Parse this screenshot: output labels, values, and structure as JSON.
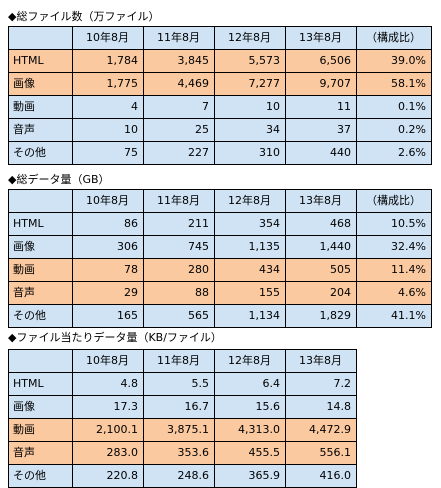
{
  "colors": {
    "blue": "#cfe3f5",
    "orange": "#fbc9a0"
  },
  "tables": [
    {
      "title": "◆総ファイル数（万ファイル）",
      "headers": [
        "",
        "10年8月",
        "11年8月",
        "12年8月",
        "13年8月",
        "（構成比）"
      ],
      "rows": [
        {
          "label": "HTML",
          "values": [
            "1,784",
            "3,845",
            "5,573",
            "6,506"
          ],
          "share": "39.0%",
          "color": "orange"
        },
        {
          "label": "画像",
          "values": [
            "1,775",
            "4,469",
            "7,277",
            "9,707"
          ],
          "share": "58.1%",
          "color": "orange"
        },
        {
          "label": "動画",
          "values": [
            "4",
            "7",
            "10",
            "11"
          ],
          "share": "0.1%",
          "color": "blue"
        },
        {
          "label": "音声",
          "values": [
            "10",
            "25",
            "34",
            "37"
          ],
          "share": "0.2%",
          "color": "blue"
        },
        {
          "label": "その他",
          "values": [
            "75",
            "227",
            "310",
            "440"
          ],
          "share": "2.6%",
          "color": "blue"
        }
      ]
    },
    {
      "title": "◆総データ量（GB）",
      "headers": [
        "",
        "10年8月",
        "11年8月",
        "12年8月",
        "13年8月",
        "（構成比）"
      ],
      "rows": [
        {
          "label": "HTML",
          "values": [
            "86",
            "211",
            "354",
            "468"
          ],
          "share": "10.5%",
          "color": "blue"
        },
        {
          "label": "画像",
          "values": [
            "306",
            "745",
            "1,135",
            "1,440"
          ],
          "share": "32.4%",
          "color": "blue"
        },
        {
          "label": "動画",
          "values": [
            "78",
            "280",
            "434",
            "505"
          ],
          "share": "11.4%",
          "color": "orange"
        },
        {
          "label": "音声",
          "values": [
            "29",
            "88",
            "155",
            "204"
          ],
          "share": "4.6%",
          "color": "orange"
        },
        {
          "label": "その他",
          "values": [
            "165",
            "565",
            "1,134",
            "1,829"
          ],
          "share": "41.1%",
          "color": "blue"
        }
      ]
    },
    {
      "title": "◆ファイル当たりデータ量（KB/ファイル）",
      "headers": [
        "",
        "10年8月",
        "11年8月",
        "12年8月",
        "13年8月"
      ],
      "rows": [
        {
          "label": "HTML",
          "values": [
            "4.8",
            "5.5",
            "6.4",
            "7.2"
          ],
          "color": "blue"
        },
        {
          "label": "画像",
          "values": [
            "17.3",
            "16.7",
            "15.6",
            "14.8"
          ],
          "color": "blue"
        },
        {
          "label": "動画",
          "values": [
            "2,100.1",
            "3,875.1",
            "4,313.0",
            "4,472.9"
          ],
          "color": "orange"
        },
        {
          "label": "音声",
          "values": [
            "283.0",
            "353.6",
            "455.5",
            "556.1"
          ],
          "color": "orange"
        },
        {
          "label": "その他",
          "values": [
            "220.8",
            "248.6",
            "365.9",
            "416.0"
          ],
          "color": "blue"
        }
      ]
    }
  ]
}
